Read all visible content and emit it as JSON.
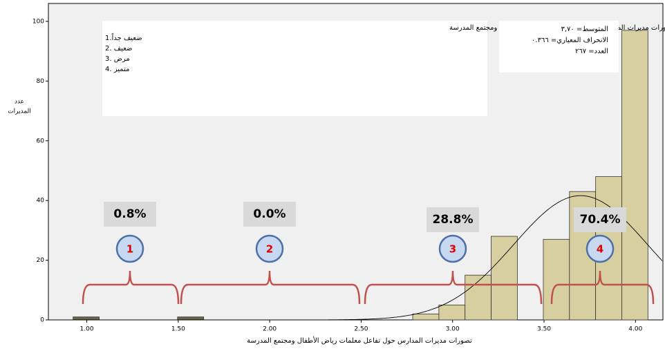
{
  "chart_data": {
    "type": "histogram",
    "y_label": [
      "عدد",
      "المديرات"
    ],
    "x_label": "تصورات مديرات المدارس حول تفاعل معلمات رياض الأطفال ومجتمع المدرسة",
    "bins": [
      0.925,
      1.068,
      1.211,
      1.354,
      1.496,
      1.639,
      1.782,
      1.925,
      2.068,
      2.211,
      2.354,
      2.496,
      2.639,
      2.782,
      2.925,
      3.068,
      3.211,
      3.354,
      3.496,
      3.639,
      3.782,
      3.925,
      4.068
    ],
    "values": [
      1,
      0,
      0,
      0,
      1,
      0,
      0,
      0,
      0,
      0,
      0,
      0,
      0,
      2,
      5,
      15,
      28,
      0,
      27,
      43,
      48,
      97
    ],
    "color": "#d7cf9f",
    "xlim": [
      0.79,
      4.15
    ],
    "ylim": [
      0,
      106
    ],
    "xticks": [
      {
        "value": 1,
        "label": "1.00"
      },
      {
        "value": 1.5,
        "label": "1.50"
      },
      {
        "value": 2,
        "label": "2.00"
      },
      {
        "value": 2.5,
        "label": "2.50"
      },
      {
        "value": 3,
        "label": "3.00"
      },
      {
        "value": 3.5,
        "label": "3.50"
      },
      {
        "value": 4,
        "label": "4.00"
      }
    ],
    "yticks": [
      0,
      20,
      40,
      60,
      80,
      100
    ],
    "normal_curve": {
      "mean": 3.7,
      "sd": 0.366,
      "n": 267
    },
    "legend_box": {
      "title": "تصورات مديرات المدارس حول تفاعل معلمات رياض الأطفال ومجتمع المدرسة",
      "items": [
        "ضعيف جداً.1",
        "ضعيف .2",
        "مرض .3",
        "متميز .4"
      ]
    },
    "stats_box": [
      "المتوسط= ٣,٧٠",
      "الانحراف المعياري= ٠.٣٦٦",
      "العدد= ٢٦٧"
    ],
    "annotations": [
      {
        "percent": "0.8%",
        "number": "1"
      },
      {
        "percent": "0.0%",
        "number": "2"
      },
      {
        "percent": "28.8%",
        "number": "3"
      },
      {
        "percent": "70.4%",
        "number": "4"
      }
    ]
  }
}
